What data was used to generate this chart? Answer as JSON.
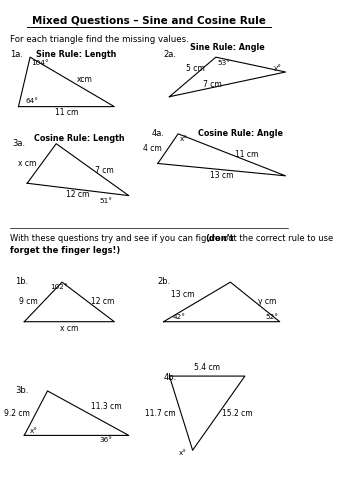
{
  "title": "Mixed Questions – Sine and Cosine Rule",
  "subtitle": "For each triangle find the missing values.",
  "instruction": "With these questions try and see if you can figure out the correct rule to use ",
  "instruction_bold": "(don’t forget the finger legs!)",
  "bg_color": "#ffffff"
}
